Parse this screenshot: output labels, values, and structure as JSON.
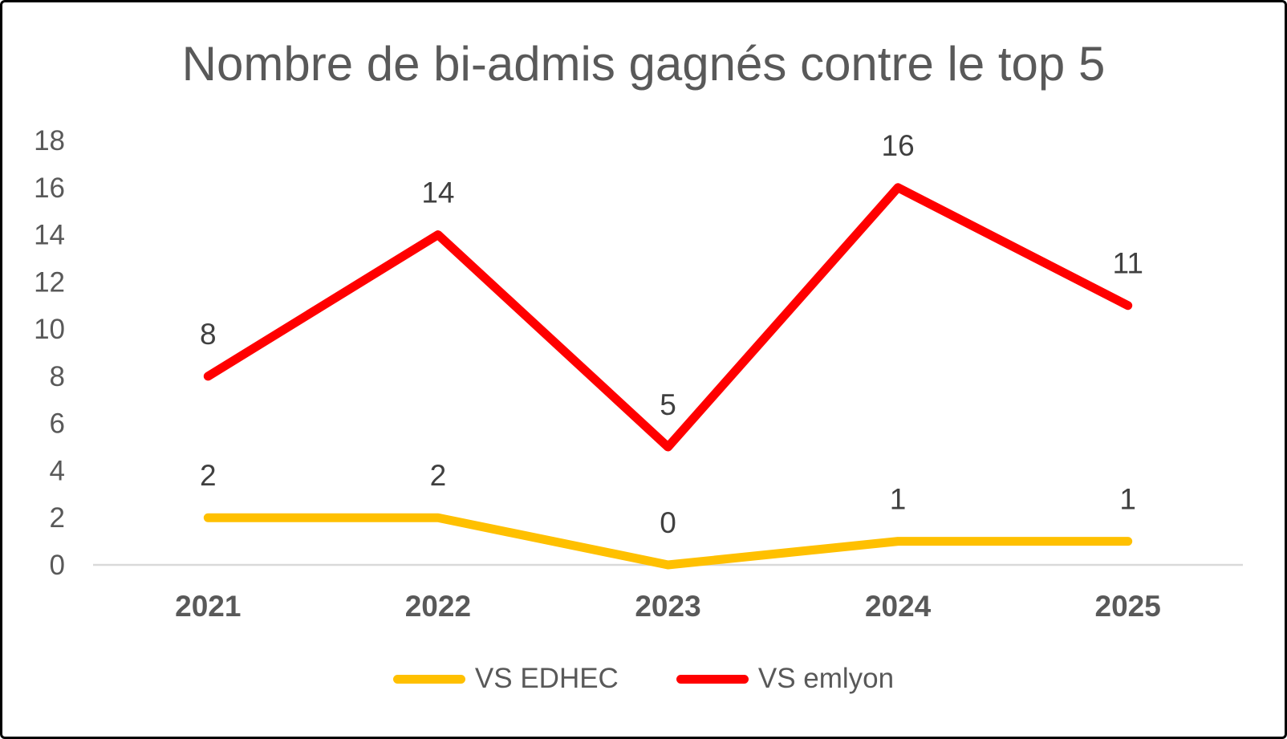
{
  "chart_data": {
    "type": "line",
    "title": "Nombre de bi-admis gagnés contre le top 5",
    "categories": [
      "2021",
      "2022",
      "2023",
      "2024",
      "2025"
    ],
    "series": [
      {
        "name": "VS EDHEC",
        "color": "#FFC000",
        "values": [
          2,
          2,
          0,
          1,
          1
        ]
      },
      {
        "name": "VS emlyon",
        "color": "#FF0000",
        "values": [
          8,
          14,
          5,
          16,
          11
        ]
      }
    ],
    "ylim": [
      0,
      18
    ],
    "ytick_step": 2,
    "grid": false,
    "data_labels": true,
    "legend_position": "bottom",
    "axis_color": "#D9D9D9",
    "text_color": "#595959",
    "data_label_color": "#404040",
    "frame_border_color": "#000000",
    "background_color": "#FFFFFF"
  }
}
